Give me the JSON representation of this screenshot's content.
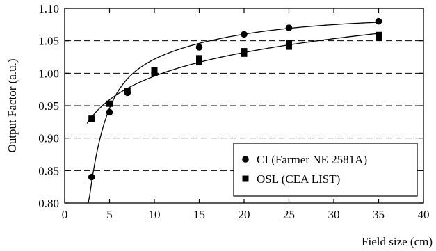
{
  "chart_data": {
    "type": "scatter",
    "title": "",
    "xlabel": "Field size (cm)",
    "ylabel": "Output Factor (a.u.)",
    "xlim": [
      0,
      40
    ],
    "ylim": [
      0.8,
      1.1
    ],
    "x_ticks": [
      0,
      5,
      10,
      15,
      20,
      25,
      30,
      35,
      40
    ],
    "y_ticks": [
      0.8,
      0.85,
      0.9,
      0.95,
      1.0,
      1.05,
      1.1
    ],
    "x_tick_labels": [
      "0",
      "5",
      "10",
      "15",
      "20",
      "25",
      "30",
      "35",
      "40"
    ],
    "y_tick_labels": [
      "0.80",
      "0.85",
      "0.90",
      "0.95",
      "1.00",
      "1.05",
      "1.10"
    ],
    "grid": "horizontal dashed",
    "legend_position": "bottom-right",
    "series": [
      {
        "name": "CI (Farmer NE 2581A)",
        "marker": "circle",
        "color": "#000000",
        "x": [
          3,
          5,
          7,
          10,
          15,
          20,
          25,
          35
        ],
        "y": [
          0.84,
          0.94,
          0.97,
          1.0,
          1.04,
          1.06,
          1.07,
          1.08
        ],
        "fit_curve": true
      },
      {
        "name": "OSL (CEA LIST)",
        "marker": "square",
        "color": "#000000",
        "points": [
          [
            3,
            0.93
          ],
          [
            5,
            0.953
          ],
          [
            7,
            0.973
          ],
          [
            10,
            1.005
          ],
          [
            10,
            1.0
          ],
          [
            15,
            1.023
          ],
          [
            15,
            1.018
          ],
          [
            20,
            1.034
          ],
          [
            20,
            1.03
          ],
          [
            25,
            1.046
          ],
          [
            25,
            1.041
          ],
          [
            35,
            1.059
          ],
          [
            35,
            1.055
          ]
        ],
        "fit_curve": true
      }
    ]
  }
}
